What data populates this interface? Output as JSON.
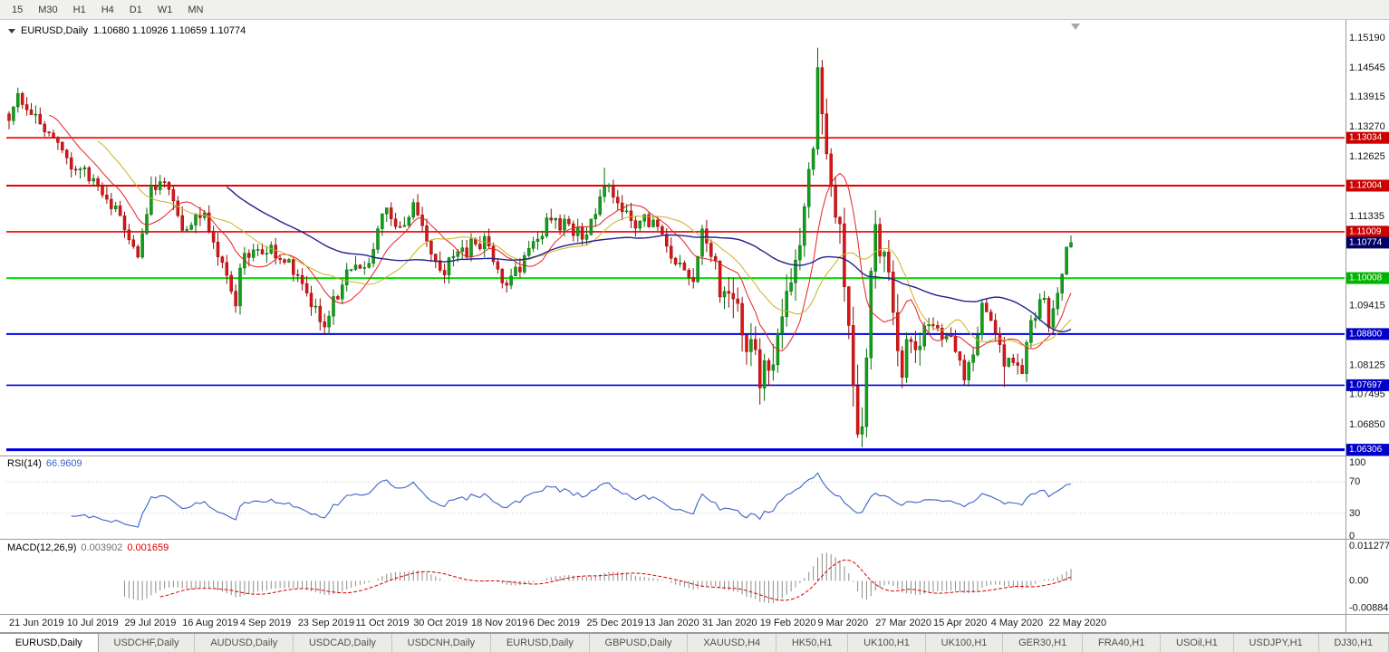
{
  "toolbar": {
    "timeframes": [
      "15",
      "M30",
      "H1",
      "H4",
      "D1",
      "W1",
      "MN"
    ]
  },
  "title": {
    "symbol": "EURUSD,Daily",
    "ohlc": "1.10680 1.10926 1.10659 1.10774"
  },
  "chart_data": {
    "type": "candlestick",
    "symbol": "EURUSD",
    "timeframe": "Daily",
    "last_quote": {
      "open": 1.1068,
      "high": 1.10926,
      "low": 1.10659,
      "close": 1.10774
    },
    "price_axis": {
      "range": [
        1.0622,
        1.1552
      ],
      "ticks": [
        "1.15190",
        "1.14545",
        "1.13915",
        "1.13270",
        "1.12625",
        "1.11335",
        "1.09415",
        "1.08125",
        "1.07495",
        "1.06850"
      ]
    },
    "current_price": {
      "value": 1.10774,
      "label": "1.10774",
      "color": "#000066"
    },
    "hlines": [
      {
        "value": 1.13034,
        "label": "1.13034",
        "color": "#E80000",
        "tag_color": "#CC0000",
        "width": 1.6
      },
      {
        "value": 1.12004,
        "label": "1.12004",
        "color": "#E80000",
        "tag_color": "#CC0000",
        "width": 2
      },
      {
        "value": 1.11009,
        "label": "1.11009",
        "color": "#E80000",
        "tag_color": "#CC0000",
        "width": 1.6
      },
      {
        "value": 1.10008,
        "label": "1.10008",
        "color": "#00DC00",
        "tag_color": "#00B400",
        "width": 2
      },
      {
        "value": 1.088,
        "label": "1.08800",
        "color": "#0000E0",
        "tag_color": "#0000C8",
        "width": 2
      },
      {
        "value": 1.07697,
        "label": "1.07697",
        "color": "#0000E0",
        "tag_color": "#0000C8",
        "width": 1.6
      },
      {
        "value": 1.06306,
        "label": "1.06306",
        "color": "#0000E0",
        "tag_color": "#0000C8",
        "width": 3
      }
    ],
    "x_axis": {
      "labels": [
        {
          "label": "21 Jun 2019",
          "index": 0
        },
        {
          "label": "10 Jul 2019",
          "index": 13
        },
        {
          "label": "29 Jul 2019",
          "index": 26
        },
        {
          "label": "16 Aug 2019",
          "index": 39
        },
        {
          "label": "4 Sep 2019",
          "index": 52
        },
        {
          "label": "23 Sep 2019",
          "index": 65
        },
        {
          "label": "11 Oct 2019",
          "index": 78
        },
        {
          "label": "30 Oct 2019",
          "index": 91
        },
        {
          "label": "18 Nov 2019",
          "index": 104
        },
        {
          "label": "6 Dec 2019",
          "index": 117
        },
        {
          "label": "25 Dec 2019",
          "index": 130
        },
        {
          "label": "13 Jan 2020",
          "index": 143
        },
        {
          "label": "31 Jan 2020",
          "index": 156
        },
        {
          "label": "19 Feb 2020",
          "index": 169
        },
        {
          "label": "9 Mar 2020",
          "index": 182
        },
        {
          "label": "27 Mar 2020",
          "index": 195
        },
        {
          "label": "15 Apr 2020",
          "index": 208
        },
        {
          "label": "4 May 2020",
          "index": 221
        },
        {
          "label": "22 May 2020",
          "index": 234
        }
      ]
    },
    "candles_n": 240,
    "price_waypoints": [
      [
        0,
        1.1355
      ],
      [
        2,
        1.14
      ],
      [
        6,
        1.134
      ],
      [
        13,
        1.1255
      ],
      [
        18,
        1.1215
      ],
      [
        24,
        1.115
      ],
      [
        28,
        1.1075
      ],
      [
        29,
        1.104
      ],
      [
        32,
        1.1195
      ],
      [
        36,
        1.1205
      ],
      [
        39,
        1.1105
      ],
      [
        44,
        1.114
      ],
      [
        49,
        1.0995
      ],
      [
        51,
        1.094
      ],
      [
        52,
        1.1035
      ],
      [
        59,
        1.107
      ],
      [
        64,
        1.1015
      ],
      [
        69,
        1.093
      ],
      [
        71,
        1.09
      ],
      [
        74,
        1.097
      ],
      [
        78,
        1.104
      ],
      [
        81,
        1.103
      ],
      [
        84,
        1.115
      ],
      [
        87,
        1.111
      ],
      [
        91,
        1.115
      ],
      [
        94,
        1.1075
      ],
      [
        98,
        1.102
      ],
      [
        104,
        1.107
      ],
      [
        107,
        1.1075
      ],
      [
        110,
        1.101
      ],
      [
        113,
        1.0995
      ],
      [
        117,
        1.106
      ],
      [
        122,
        1.113
      ],
      [
        126,
        1.111
      ],
      [
        130,
        1.109
      ],
      [
        134,
        1.121
      ],
      [
        137,
        1.116
      ],
      [
        140,
        1.112
      ],
      [
        143,
        1.113
      ],
      [
        147,
        1.109
      ],
      [
        151,
        1.1025
      ],
      [
        154,
        1.101
      ],
      [
        156,
        1.109
      ],
      [
        158,
        1.106
      ],
      [
        161,
        1.0945
      ],
      [
        164,
        1.0915
      ],
      [
        169,
        1.0795
      ],
      [
        170,
        1.0785
      ],
      [
        172,
        1.085
      ],
      [
        174,
        1.088
      ],
      [
        176,
        1.1025
      ],
      [
        179,
        1.1135
      ],
      [
        181,
        1.129
      ],
      [
        182,
        1.143
      ],
      [
        183,
        1.136
      ],
      [
        185,
        1.1185
      ],
      [
        187,
        1.11
      ],
      [
        189,
        1.086
      ],
      [
        191,
        1.07
      ],
      [
        192,
        1.069
      ],
      [
        193,
        1.08
      ],
      [
        194,
        1.098
      ],
      [
        195,
        1.11
      ],
      [
        197,
        1.103
      ],
      [
        199,
        1.092
      ],
      [
        201,
        1.08
      ],
      [
        203,
        1.086
      ],
      [
        206,
        1.0895
      ],
      [
        208,
        1.091
      ],
      [
        210,
        1.087
      ],
      [
        212,
        1.0885
      ],
      [
        215,
        1.079
      ],
      [
        217,
        1.083
      ],
      [
        219,
        1.0945
      ],
      [
        221,
        1.0905
      ],
      [
        224,
        1.0825
      ],
      [
        227,
        1.08
      ],
      [
        228,
        1.081
      ],
      [
        230,
        1.0915
      ],
      [
        233,
        1.095
      ],
      [
        234,
        1.09
      ],
      [
        236,
        1.096
      ],
      [
        237,
        1.102
      ],
      [
        238,
        1.1068
      ],
      [
        239,
        1.1077
      ]
    ],
    "forced_extremes": [
      {
        "i": 2,
        "h": 1.1412
      },
      {
        "i": 51,
        "l": 1.0926
      },
      {
        "i": 71,
        "l": 1.0879
      },
      {
        "i": 134,
        "h": 1.1239
      },
      {
        "i": 169,
        "l": 1.0778
      },
      {
        "i": 182,
        "h": 1.1495
      },
      {
        "i": 191,
        "l": 1.0656
      },
      {
        "i": 192,
        "l": 1.0636
      },
      {
        "i": 195,
        "h": 1.1147
      },
      {
        "i": 215,
        "l": 1.077
      },
      {
        "i": 224,
        "l": 1.0766
      }
    ],
    "up_color": "#10A018",
    "up_stroke": "#066A0A",
    "down_color": "#DD1414",
    "down_stroke": "#8F0A0A",
    "moving_averages": [
      {
        "period": 10,
        "color": "#E32222"
      },
      {
        "period": 21,
        "color": "#C9B220"
      },
      {
        "period": 50,
        "color": "#20208F"
      }
    ],
    "rsi_panel": {
      "name": "RSI(14)",
      "value": "66.9609",
      "period": 14,
      "line_color": "#3A62C8",
      "axis_ticks": [
        "100",
        "70",
        "30",
        "0"
      ],
      "guide_levels": [
        70,
        30
      ]
    },
    "macd_panel": {
      "name": "MACD(12,26,9)",
      "fast": 12,
      "slow": 26,
      "signal": 9,
      "main_value": "0.003902",
      "signal_value": "0.001659",
      "main_value_color": "#707070",
      "signal_color": "#D80000",
      "hist_color": "#8C8C8C",
      "axis_ticks": [
        "0.011277",
        "0.00",
        "-0.008845"
      ],
      "range": [
        -0.0101,
        0.0127
      ]
    }
  },
  "tabs": [
    {
      "label": "EURUSD,Daily",
      "active": true
    },
    {
      "label": "USDCHF,Daily",
      "active": false
    },
    {
      "label": "AUDUSD,Daily",
      "active": false
    },
    {
      "label": "USDCAD,Daily",
      "active": false
    },
    {
      "label": "USDCNH,Daily",
      "active": false
    },
    {
      "label": "EURUSD,Daily",
      "active": false
    },
    {
      "label": "GBPUSD,Daily",
      "active": false
    },
    {
      "label": "XAUUSD,H4",
      "active": false
    },
    {
      "label": "HK50,H1",
      "active": false
    },
    {
      "label": "UK100,H1",
      "active": false
    },
    {
      "label": "UK100,H1",
      "active": false
    },
    {
      "label": "GER30,H1",
      "active": false
    },
    {
      "label": "FRA40,H1",
      "active": false
    },
    {
      "label": "USOil,H1",
      "active": false
    },
    {
      "label": "USDJPY,H1",
      "active": false
    },
    {
      "label": "DJ30,H1",
      "active": false
    }
  ]
}
